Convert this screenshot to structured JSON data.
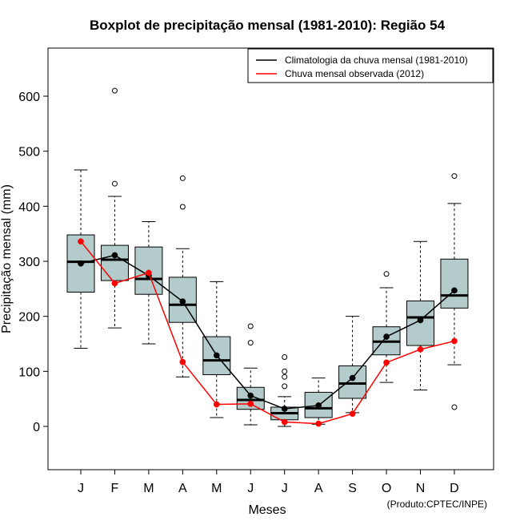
{
  "chart_data": {
    "type": "boxplot",
    "title": "Boxplot de precipitação mensal (1981-2010): Região 54",
    "xlabel": "Meses",
    "ylabel": "Precipitação mensal (mm)",
    "ylim": [
      -80,
      690
    ],
    "yticks": [
      0,
      100,
      200,
      300,
      400,
      500,
      600
    ],
    "categories": [
      "J",
      "F",
      "M",
      "A",
      "M",
      "J",
      "J",
      "A",
      "S",
      "O",
      "N",
      "D"
    ],
    "boxes": [
      {
        "whisker_low": 142,
        "q1": 244,
        "median": 299,
        "q3": 348,
        "whisker_high": 466,
        "outliers": []
      },
      {
        "whisker_low": 179,
        "q1": 265,
        "median": 303,
        "q3": 329,
        "whisker_high": 418,
        "outliers": [
          441,
          610
        ]
      },
      {
        "whisker_low": 150,
        "q1": 240,
        "median": 268,
        "q3": 326,
        "whisker_high": 372,
        "outliers": []
      },
      {
        "whisker_low": 90,
        "q1": 189,
        "median": 221,
        "q3": 271,
        "whisker_high": 323,
        "outliers": [
          399,
          451
        ]
      },
      {
        "whisker_low": 16,
        "q1": 94,
        "median": 120,
        "q3": 163,
        "whisker_high": 263,
        "outliers": []
      },
      {
        "whisker_low": 3,
        "q1": 31,
        "median": 48,
        "q3": 71,
        "whisker_high": 106,
        "outliers": [
          152,
          182
        ]
      },
      {
        "whisker_low": 0,
        "q1": 12,
        "median": 24,
        "q3": 35,
        "whisker_high": 54,
        "outliers": [
          73,
          90,
          100,
          126
        ]
      },
      {
        "whisker_low": 4,
        "q1": 16,
        "median": 33,
        "q3": 62,
        "whisker_high": 88,
        "outliers": []
      },
      {
        "whisker_low": 25,
        "q1": 51,
        "median": 78,
        "q3": 110,
        "whisker_high": 200,
        "outliers": []
      },
      {
        "whisker_low": 80,
        "q1": 130,
        "median": 154,
        "q3": 181,
        "whisker_high": 252,
        "outliers": [
          277
        ]
      },
      {
        "whisker_low": 66,
        "q1": 147,
        "median": 198,
        "q3": 228,
        "whisker_high": 336,
        "outliers": []
      },
      {
        "whisker_low": 112,
        "q1": 215,
        "median": 238,
        "q3": 304,
        "whisker_high": 405,
        "outliers": [
          35,
          455
        ]
      }
    ],
    "series": [
      {
        "name": "Climatologia da chuva mensal (1981-2010)",
        "color": "#000000",
        "values": [
          296,
          311,
          274,
          227,
          129,
          56,
          32,
          38,
          88,
          163,
          193,
          247
        ]
      },
      {
        "name": "Chuva mensal observada (2012)",
        "color": "#ff0000",
        "values": [
          336,
          260,
          279,
          117,
          40,
          41,
          8,
          5,
          23,
          116,
          140,
          155
        ]
      }
    ],
    "box_fill": "#b4cbcb",
    "legend_position": "top-right",
    "credit": "(Produto:CPTEC/INPE)"
  }
}
